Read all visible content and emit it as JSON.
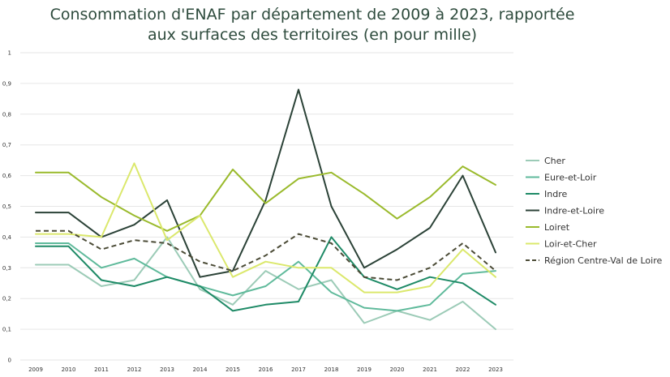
{
  "chart_data": {
    "type": "line",
    "title_line1": "Consommation d'ENAF par département de 2009 à 2023, rapportée",
    "title_line2": "aux surfaces des territoires (en pour mille)",
    "categories": [
      "2009",
      "2010",
      "2011",
      "2012",
      "2013",
      "2014",
      "2015",
      "2016",
      "2017",
      "2018",
      "2019",
      "2020",
      "2021",
      "2022",
      "2023"
    ],
    "ylim": [
      0,
      1
    ],
    "yticks": [
      0,
      0.1,
      0.2,
      0.3,
      0.4,
      0.5,
      0.6,
      0.7,
      0.8,
      0.9,
      1
    ],
    "ytick_labels": [
      "0",
      "0,1",
      "0,2",
      "0,3",
      "0,4",
      "0,5",
      "0,6",
      "0,7",
      "0,8",
      "0,9",
      "1"
    ],
    "grid": true,
    "legend_position": "right",
    "series": [
      {
        "name": "Cher",
        "color": "#9ccbb7",
        "dashed": false,
        "values": [
          0.31,
          0.31,
          0.24,
          0.26,
          0.4,
          0.23,
          0.18,
          0.29,
          0.23,
          0.26,
          0.12,
          0.16,
          0.13,
          0.19,
          0.1
        ]
      },
      {
        "name": "Eure-et-Loir",
        "color": "#5fba9b",
        "dashed": false,
        "values": [
          0.38,
          0.38,
          0.3,
          0.33,
          0.27,
          0.24,
          0.21,
          0.24,
          0.32,
          0.22,
          0.17,
          0.16,
          0.18,
          0.28,
          0.29
        ]
      },
      {
        "name": "Indre",
        "color": "#1e8a66",
        "dashed": false,
        "values": [
          0.37,
          0.37,
          0.26,
          0.24,
          0.27,
          0.24,
          0.16,
          0.18,
          0.19,
          0.4,
          0.27,
          0.23,
          0.27,
          0.25,
          0.18
        ]
      },
      {
        "name": "Indre-et-Loire",
        "color": "#2b4237",
        "dashed": false,
        "values": [
          0.48,
          0.48,
          0.4,
          0.44,
          0.52,
          0.27,
          0.29,
          0.52,
          0.88,
          0.5,
          0.3,
          0.36,
          0.43,
          0.6,
          0.35
        ]
      },
      {
        "name": "Loiret",
        "color": "#9aba2c",
        "dashed": false,
        "values": [
          0.61,
          0.61,
          0.53,
          0.47,
          0.42,
          0.47,
          0.62,
          0.51,
          0.59,
          0.61,
          0.54,
          0.46,
          0.53,
          0.63,
          0.57
        ]
      },
      {
        "name": "Loir-et-Cher",
        "color": "#dbe86c",
        "dashed": false,
        "values": [
          0.41,
          0.41,
          0.4,
          0.64,
          0.39,
          0.47,
          0.27,
          0.32,
          0.3,
          0.3,
          0.22,
          0.22,
          0.24,
          0.36,
          0.27
        ]
      },
      {
        "name": "Région Centre-Val de Loire",
        "color": "#4b4b36",
        "dashed": true,
        "values": [
          0.42,
          0.42,
          0.36,
          0.39,
          0.38,
          0.32,
          0.29,
          0.34,
          0.41,
          0.38,
          0.27,
          0.26,
          0.3,
          0.38,
          0.29
        ]
      }
    ]
  }
}
